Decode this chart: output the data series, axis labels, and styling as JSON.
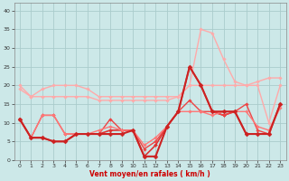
{
  "xlabel": "Vent moyen/en rafales ( km/h )",
  "background_color": "#cce8e8",
  "grid_color": "#aacccc",
  "xlim": [
    -0.5,
    23.5
  ],
  "ylim": [
    0,
    42
  ],
  "yticks": [
    0,
    5,
    10,
    15,
    20,
    25,
    30,
    35,
    40
  ],
  "xticks": [
    0,
    1,
    2,
    3,
    4,
    5,
    6,
    7,
    8,
    9,
    10,
    11,
    12,
    13,
    14,
    15,
    16,
    17,
    18,
    19,
    20,
    21,
    22,
    23
  ],
  "series": [
    {
      "color": "#ffaaaa",
      "lw": 1.0,
      "marker": "D",
      "ms": 1.8,
      "connect_nulls": true,
      "values": [
        20,
        17,
        19,
        20,
        20,
        20,
        19,
        17,
        17,
        17,
        17,
        17,
        17,
        17,
        17,
        20,
        20,
        20,
        20,
        20,
        20,
        21,
        22,
        22
      ]
    },
    {
      "color": "#ffaaaa",
      "lw": 1.0,
      "marker": "D",
      "ms": 1.8,
      "connect_nulls": true,
      "values": [
        19,
        17,
        17,
        17,
        17,
        17,
        17,
        16,
        16,
        16,
        16,
        16,
        16,
        16,
        17,
        20,
        35,
        34,
        27,
        21,
        20,
        20,
        10,
        20
      ]
    },
    {
      "color": "#dd3333",
      "lw": 1.2,
      "marker": "D",
      "ms": 2.0,
      "connect_nulls": true,
      "values": [
        11,
        6,
        6,
        5,
        5,
        7,
        7,
        7,
        8,
        8,
        8,
        1,
        4,
        9,
        13,
        25,
        20,
        13,
        12,
        13,
        7,
        7,
        7,
        15
      ]
    },
    {
      "color": "#ee4444",
      "lw": 1.0,
      "marker": "D",
      "ms": 1.8,
      "connect_nulls": true,
      "values": [
        11,
        6,
        12,
        12,
        7,
        7,
        7,
        7,
        11,
        8,
        8,
        3,
        5,
        9,
        13,
        16,
        13,
        13,
        12,
        13,
        15,
        8,
        7,
        15
      ]
    },
    {
      "color": "#ff7777",
      "lw": 1.0,
      "marker": "D",
      "ms": 1.8,
      "connect_nulls": true,
      "values": [
        11,
        6,
        12,
        12,
        7,
        7,
        7,
        8,
        9,
        8,
        8,
        4,
        6,
        9,
        13,
        13,
        13,
        12,
        13,
        13,
        13,
        9,
        8,
        14
      ]
    },
    {
      "color": "#cc2222",
      "lw": 1.5,
      "marker": "D",
      "ms": 2.5,
      "connect_nulls": true,
      "values": [
        11,
        6,
        6,
        5,
        5,
        7,
        7,
        7,
        7,
        7,
        8,
        1,
        1,
        9,
        13,
        25,
        20,
        13,
        13,
        13,
        7,
        7,
        7,
        15
      ]
    }
  ]
}
